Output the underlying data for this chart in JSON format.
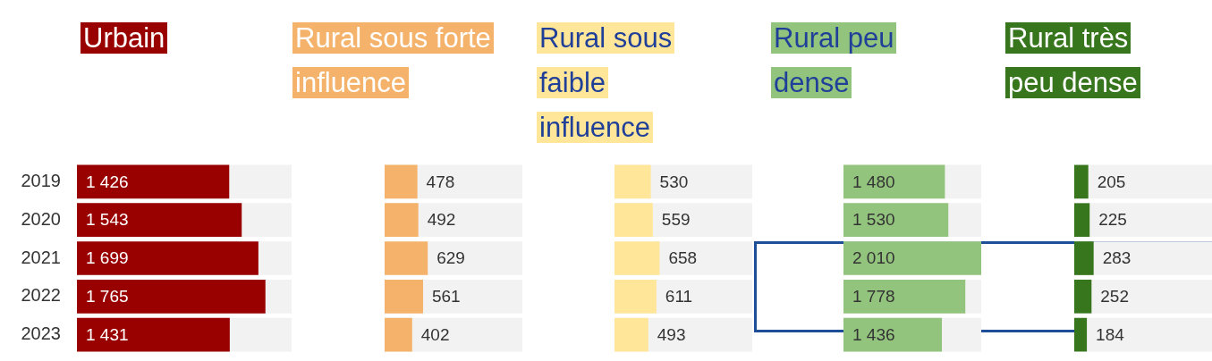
{
  "chart_data": [
    {
      "type": "bar",
      "orientation": "horizontal",
      "title": "Urbain",
      "categories": [
        "2019",
        "2020",
        "2021",
        "2022",
        "2023"
      ],
      "values": [
        1426,
        1543,
        1699,
        1765,
        1431
      ],
      "value_labels": [
        "1 426",
        "1 543",
        "1 699",
        "1 765",
        "1 431"
      ],
      "color": "#990000",
      "xlim": [
        0,
        2010
      ],
      "tick_labels": "y"
    },
    {
      "type": "bar",
      "orientation": "horizontal",
      "title": "Rural sous forte influence",
      "categories": [
        "2019",
        "2020",
        "2021",
        "2022",
        "2023"
      ],
      "values": [
        478,
        492,
        629,
        561,
        402
      ],
      "value_labels": [
        "478",
        "492",
        "629",
        "561",
        "402"
      ],
      "color": "#f4b26b",
      "xlim": [
        0,
        2010
      ],
      "tick_labels": false
    },
    {
      "type": "bar",
      "orientation": "horizontal",
      "title": "Rural sous faible influence",
      "categories": [
        "2019",
        "2020",
        "2021",
        "2022",
        "2023"
      ],
      "values": [
        530,
        559,
        658,
        611,
        493
      ],
      "value_labels": [
        "530",
        "559",
        "658",
        "611",
        "493"
      ],
      "color": "#ffe699",
      "xlim": [
        0,
        2010
      ],
      "tick_labels": false
    },
    {
      "type": "bar",
      "orientation": "horizontal",
      "title": "Rural peu dense",
      "categories": [
        "2019",
        "2020",
        "2021",
        "2022",
        "2023"
      ],
      "values": [
        1480,
        1530,
        2010,
        1778,
        1436
      ],
      "value_labels": [
        "1 480",
        "1 530",
        "2 010",
        "1 778",
        "1 436"
      ],
      "color": "#93c47d",
      "xlim": [
        0,
        2010
      ],
      "tick_labels": false
    },
    {
      "type": "bar",
      "orientation": "horizontal",
      "title": "Rural très peu dense",
      "categories": [
        "2019",
        "2020",
        "2021",
        "2022",
        "2023"
      ],
      "values": [
        205,
        225,
        283,
        252,
        184
      ],
      "value_labels": [
        "205",
        "225",
        "283",
        "252",
        "184"
      ],
      "color": "#38761d",
      "xlim": [
        0,
        2010
      ],
      "tick_labels": false
    }
  ]
}
